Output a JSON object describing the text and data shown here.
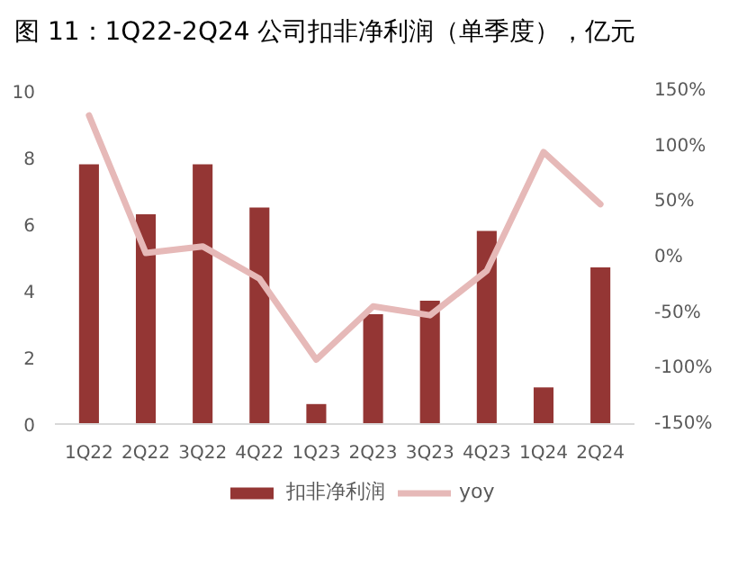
{
  "chart_data": {
    "type": "bar",
    "title": "图 11：1Q22-2Q24 公司扣非净利润（单季度），亿元",
    "categories": [
      "1Q22",
      "2Q22",
      "3Q22",
      "4Q22",
      "1Q23",
      "2Q23",
      "3Q23",
      "4Q23",
      "1Q24",
      "2Q24"
    ],
    "series": [
      {
        "name": "扣非净利润",
        "color": "#943634",
        "values": [
          7.8,
          6.3,
          7.8,
          6.5,
          0.6,
          3.3,
          3.7,
          5.8,
          1.1,
          4.7
        ]
      },
      {
        "name": "yoy",
        "type": "line",
        "axis": "y2",
        "color": "#e6b9b8",
        "values": [
          128,
          4,
          10,
          -19,
          -92,
          -44,
          -52,
          -12,
          95,
          48
        ]
      }
    ],
    "ylim": [
      0,
      10
    ],
    "yticks": [
      0,
      2,
      4,
      6,
      8,
      10
    ],
    "y2lim": [
      -150,
      150
    ],
    "y2ticks": [
      {
        "value": -150,
        "label": "-150%"
      },
      {
        "value": -100,
        "label": "-100%"
      },
      {
        "value": -50,
        "label": "-50%"
      },
      {
        "value": 0,
        "label": "0%"
      },
      {
        "value": 50,
        "label": "50%"
      },
      {
        "value": 100,
        "label": "100%"
      },
      {
        "value": 150,
        "label": "150%"
      }
    ],
    "grid": false,
    "legend": "bottom",
    "line_style": "solid",
    "marker": "none"
  }
}
